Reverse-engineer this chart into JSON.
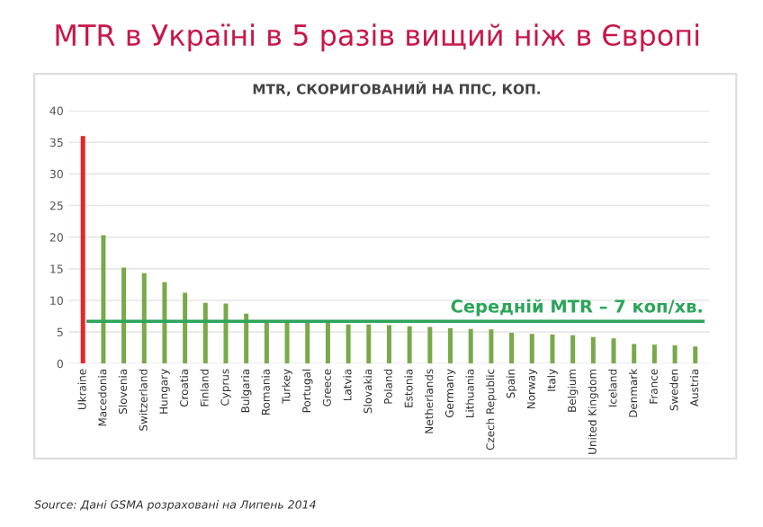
{
  "chart_data": {
    "type": "bar",
    "title": "MTR в Україні в 5 разів вищий ніж в Європі",
    "subtitle": "MTR, СКОРИГОВАНИЙ НА ППС, КОП.",
    "categories": [
      "Ukraine",
      "Macedonia",
      "Slovenia",
      "Switzerland",
      "Hungary",
      "Croatia",
      "Finland",
      "Cyprus",
      "Bulgaria",
      "Romania",
      "Turkey",
      "Portugal",
      "Greece",
      "Latvia",
      "Slovakia",
      "Poland",
      "Estonia",
      "Netherlands",
      "Germany",
      "Lithuania",
      "Czech Republic",
      "Spain",
      "Norway",
      "Italy",
      "Belgium",
      "United Kingdom",
      "Iceland",
      "Denmark",
      "France",
      "Sweden",
      "Austria"
    ],
    "values": [
      36,
      20.3,
      15.2,
      14.3,
      12.9,
      11.2,
      9.6,
      9.5,
      7.9,
      6.8,
      6.7,
      6.7,
      6.5,
      6.2,
      6.2,
      6.1,
      5.9,
      5.8,
      5.6,
      5.5,
      5.4,
      4.9,
      4.7,
      4.6,
      4.5,
      4.2,
      4.0,
      3.1,
      3.0,
      2.9,
      2.7
    ],
    "colors": [
      "#e3262a",
      "#78a94a",
      "#78a94a",
      "#78a94a",
      "#78a94a",
      "#78a94a",
      "#78a94a",
      "#78a94a",
      "#78a94a",
      "#78a94a",
      "#78a94a",
      "#78a94a",
      "#78a94a",
      "#78a94a",
      "#78a94a",
      "#78a94a",
      "#78a94a",
      "#78a94a",
      "#78a94a",
      "#78a94a",
      "#78a94a",
      "#78a94a",
      "#78a94a",
      "#78a94a",
      "#78a94a",
      "#78a94a",
      "#78a94a",
      "#78a94a",
      "#78a94a",
      "#78a94a",
      "#78a94a"
    ],
    "ylim": [
      0,
      40
    ],
    "yticks": [
      0,
      5,
      10,
      15,
      20,
      25,
      30,
      35,
      40
    ],
    "grid": "y",
    "ref_lines": [
      {
        "axis": "y",
        "value": 6.7,
        "label": "Середній MTR – 7 коп/хв.",
        "color": "#2ca55a"
      }
    ],
    "annotations": [
      "Source: Дані GSMA розраховані на Липень 2014"
    ]
  }
}
